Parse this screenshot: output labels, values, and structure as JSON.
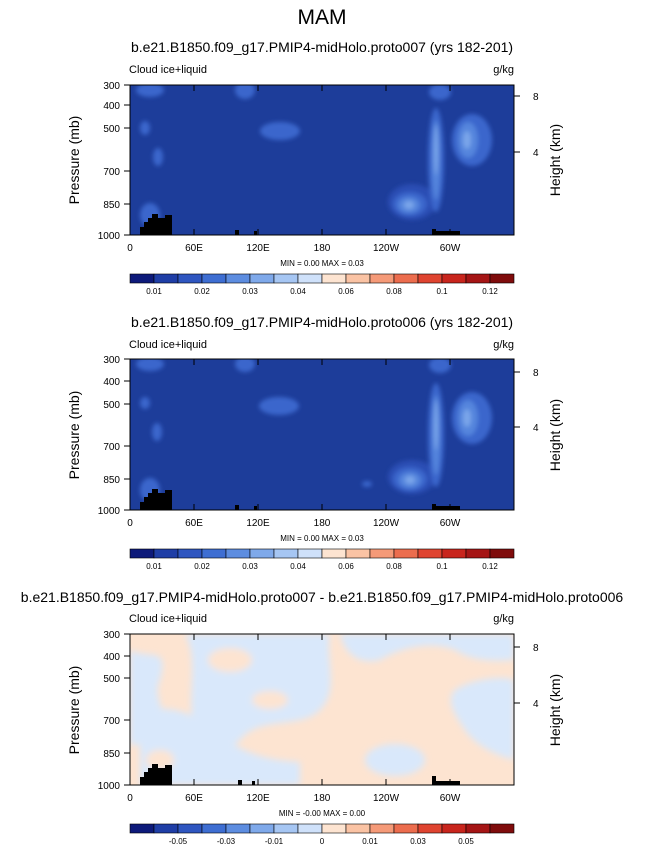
{
  "figure_title": "MAM",
  "colors": {
    "base_level": "#1d3d9a",
    "contours": [
      "#2b4db4",
      "#3a66cc",
      "#5585dd",
      "#7aa6ea",
      "#a7c8f3"
    ],
    "diff_positive": "#fde4d1",
    "diff_negative": "#d9e8fb",
    "terrain": "#000000"
  },
  "chart_data": [
    {
      "type": "heatmap",
      "title": "b.e21.B1850.f09_g17.PMIP4-midHolo.proto007 (yrs 182-201)",
      "left_label": "Cloud ice+liquid",
      "right_label": "g/kg",
      "ylabel": "Pressure (mb)",
      "ylabel_right": "Height (km)",
      "x_ticks": [
        "0",
        "60E",
        "120E",
        "180",
        "120W",
        "60W"
      ],
      "y_ticks": [
        "300",
        "400",
        "500",
        "700",
        "850",
        "1000"
      ],
      "y_right_ticks": [
        "8",
        "4"
      ],
      "stats": "MIN =   0.00  MAX =   0.03",
      "colorbar": {
        "labels": [
          "0.01",
          "0.02",
          "0.03",
          "0.04",
          "0.06",
          "0.08",
          "0.1",
          "0.12"
        ],
        "colors": [
          "#0d1a7a",
          "#1f3ea6",
          "#2f56c0",
          "#3e6ed2",
          "#5d8de0",
          "#7fa9ea",
          "#a6c6f3",
          "#cfe1fa",
          "#fde4d1",
          "#fac3a4",
          "#f59a78",
          "#ec6d4e",
          "#df4430",
          "#c8251d",
          "#a51515",
          "#7f0c0c"
        ]
      },
      "features": [
        {
          "lon": 225,
          "pressure": 870,
          "level": 5,
          "note": "maximum near 130W low levels"
        },
        {
          "lon": 300,
          "pressure": 600,
          "level": 3,
          "note": "deep column near 60W"
        },
        {
          "lon": 140,
          "pressure": 500,
          "level": 2,
          "note": "mid-level patch near 140E"
        }
      ],
      "terrain": [
        {
          "lon_start": 10,
          "lon_end": 38
        },
        {
          "lon_start": 280,
          "lon_end": 305
        }
      ]
    },
    {
      "type": "heatmap",
      "title": "b.e21.B1850.f09_g17.PMIP4-midHolo.proto006 (yrs 182-201)",
      "left_label": "Cloud ice+liquid",
      "right_label": "g/kg",
      "ylabel": "Pressure (mb)",
      "ylabel_right": "Height (km)",
      "x_ticks": [
        "0",
        "60E",
        "120E",
        "180",
        "120W",
        "60W"
      ],
      "y_ticks": [
        "300",
        "400",
        "500",
        "700",
        "850",
        "1000"
      ],
      "y_right_ticks": [
        "8",
        "4"
      ],
      "stats": "MIN =   0.00  MAX =   0.03",
      "colorbar": {
        "labels": [
          "0.01",
          "0.02",
          "0.03",
          "0.04",
          "0.06",
          "0.08",
          "0.1",
          "0.12"
        ],
        "colors": [
          "#0d1a7a",
          "#1f3ea6",
          "#2f56c0",
          "#3e6ed2",
          "#5d8de0",
          "#7fa9ea",
          "#a6c6f3",
          "#cfe1fa",
          "#fde4d1",
          "#fac3a4",
          "#f59a78",
          "#ec6d4e",
          "#df4430",
          "#c8251d",
          "#a51515",
          "#7f0c0c"
        ]
      },
      "features": [
        {
          "lon": 225,
          "pressure": 870,
          "level": 5,
          "note": "maximum near 130W low levels"
        },
        {
          "lon": 300,
          "pressure": 600,
          "level": 3,
          "note": "deep column near 60W"
        },
        {
          "lon": 140,
          "pressure": 500,
          "level": 2,
          "note": "mid-level patch near 140E"
        }
      ],
      "terrain": [
        {
          "lon_start": 10,
          "lon_end": 38
        },
        {
          "lon_start": 280,
          "lon_end": 305
        }
      ]
    },
    {
      "type": "heatmap",
      "title": "b.e21.B1850.f09_g17.PMIP4-midHolo.proto007 - b.e21.B1850.f09_g17.PMIP4-midHolo.proto006",
      "left_label": "Cloud ice+liquid",
      "right_label": "g/kg",
      "ylabel": "Pressure (mb)",
      "ylabel_right": "Height (km)",
      "x_ticks": [
        "0",
        "60E",
        "120E",
        "180",
        "120W",
        "60W"
      ],
      "y_ticks": [
        "300",
        "400",
        "500",
        "700",
        "850",
        "1000"
      ],
      "y_right_ticks": [
        "8",
        "4"
      ],
      "stats": "MIN =  -0.00  MAX =   0.00",
      "colorbar": {
        "labels": [
          "-0.05",
          "-0.03",
          "-0.01",
          "0",
          "0.01",
          "0.03",
          "0.05"
        ],
        "colors": [
          "#0d1a7a",
          "#1f3ea6",
          "#2f56c0",
          "#3e6ed2",
          "#5d8de0",
          "#7fa9ea",
          "#a6c6f3",
          "#cfe1fa",
          "#fde4d1",
          "#fac3a4",
          "#f59a78",
          "#ec6d4e",
          "#df4430",
          "#c8251d",
          "#a51515",
          "#7f0c0c"
        ]
      },
      "terrain": [
        {
          "lon_start": 10,
          "lon_end": 38
        },
        {
          "lon_start": 280,
          "lon_end": 305
        }
      ]
    }
  ]
}
